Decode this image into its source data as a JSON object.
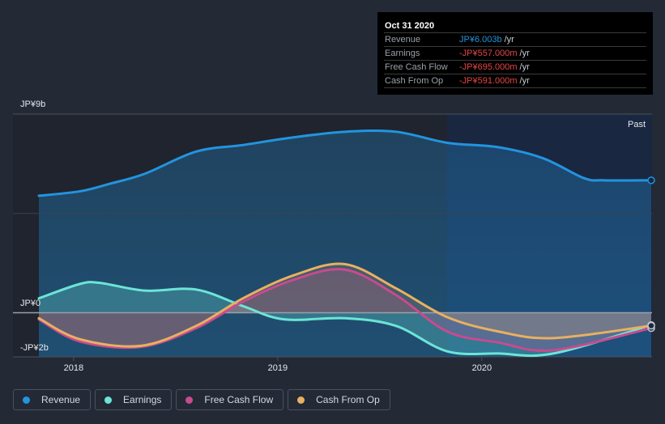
{
  "tooltip": {
    "date": "Oct 31 2020",
    "rows": [
      {
        "label": "Revenue",
        "value": "JP¥6.003b",
        "unit": "/yr",
        "color": "#2394df"
      },
      {
        "label": "Earnings",
        "value": "-JP¥557.000m",
        "unit": "/yr",
        "color": "#e64545"
      },
      {
        "label": "Free Cash Flow",
        "value": "-JP¥695.000m",
        "unit": "/yr",
        "color": "#e64545"
      },
      {
        "label": "Cash From Op",
        "value": "-JP¥591.000m",
        "unit": "/yr",
        "color": "#e64545"
      }
    ]
  },
  "legend": [
    {
      "label": "Revenue",
      "color": "#2394df"
    },
    {
      "label": "Earnings",
      "color": "#6ce5d7"
    },
    {
      "label": "Free Cash Flow",
      "color": "#c84b8e"
    },
    {
      "label": "Cash From Op",
      "color": "#e8b062"
    }
  ],
  "chart_data": {
    "type": "area",
    "title": "",
    "xlabel": "",
    "ylabel": "",
    "y_unit": "JP¥ billions",
    "ylim": [
      -2,
      9
    ],
    "xlim": [
      2017.83,
      2020.83
    ],
    "y_tick_labels": [
      {
        "value": 9,
        "label": "JP¥9b"
      },
      {
        "value": 0,
        "label": "JP¥0"
      },
      {
        "value": -2,
        "label": "-JP¥2b"
      }
    ],
    "x_tick_labels": [
      {
        "value": 2018,
        "label": "2018"
      },
      {
        "value": 2019,
        "label": "2019"
      },
      {
        "value": 2020,
        "label": "2020"
      }
    ],
    "past_label": "Past",
    "past_region_start": 2019.83,
    "legend_position": "bottom-left",
    "grid": true,
    "series": [
      {
        "name": "Revenue",
        "color": "#2394df",
        "x": [
          2017.83,
          2018.03,
          2018.18,
          2018.35,
          2018.6,
          2018.83,
          2019.08,
          2019.33,
          2019.58,
          2019.83,
          2020.08,
          2020.3,
          2020.5,
          2020.6,
          2020.83
        ],
        "y": [
          5.3,
          5.5,
          5.85,
          6.3,
          7.3,
          7.6,
          7.95,
          8.2,
          8.2,
          7.7,
          7.5,
          7.0,
          6.1,
          6.0,
          6.0
        ]
      },
      {
        "name": "Earnings",
        "color": "#6ce5d7",
        "x": [
          2017.83,
          2018.03,
          2018.13,
          2018.35,
          2018.6,
          2018.83,
          2019.03,
          2019.33,
          2019.58,
          2019.83,
          2020.08,
          2020.35,
          2020.83
        ],
        "y": [
          0.65,
          1.3,
          1.35,
          1.0,
          1.05,
          0.3,
          -0.3,
          -0.25,
          -0.6,
          -1.75,
          -1.85,
          -1.85,
          -0.56
        ]
      },
      {
        "name": "Free Cash Flow",
        "color": "#c84b8e",
        "x": [
          2017.83,
          2018.03,
          2018.33,
          2018.6,
          2018.83,
          2019.08,
          2019.33,
          2019.58,
          2019.83,
          2020.08,
          2020.35,
          2020.83
        ],
        "y": [
          -0.3,
          -1.3,
          -1.55,
          -0.7,
          0.5,
          1.5,
          1.95,
          0.8,
          -0.85,
          -1.35,
          -1.7,
          -0.7
        ]
      },
      {
        "name": "Cash From Op",
        "color": "#e8b062",
        "x": [
          2017.83,
          2018.03,
          2018.33,
          2018.6,
          2018.83,
          2019.08,
          2019.33,
          2019.58,
          2019.83,
          2020.08,
          2020.35,
          2020.83
        ],
        "y": [
          -0.25,
          -1.2,
          -1.5,
          -0.6,
          0.65,
          1.7,
          2.2,
          1.1,
          -0.2,
          -0.85,
          -1.15,
          -0.59
        ]
      }
    ]
  }
}
